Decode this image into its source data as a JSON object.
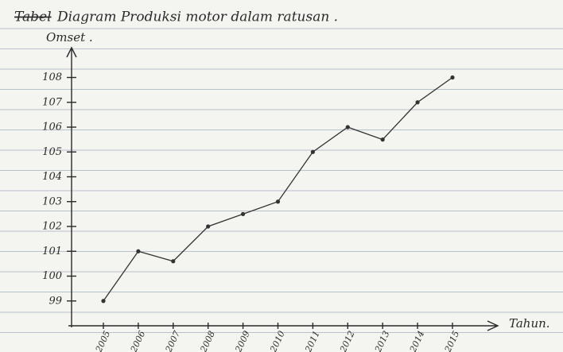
{
  "chart_data": {
    "type": "line",
    "struck_word": "Tabel",
    "title": "Diagram Produksi motor dalam ratusan .",
    "y_label": "Omset .",
    "x_label": "Tahun.",
    "categories": [
      "2005",
      "2006",
      "2007",
      "2008",
      "2009",
      "2010",
      "2011",
      "2012",
      "2013",
      "2014",
      "2015"
    ],
    "values": [
      99,
      101,
      100.6,
      102,
      102.5,
      103,
      105,
      106,
      105.5,
      107,
      108
    ],
    "color": "#333333",
    "ylim": [
      98,
      109.2
    ],
    "yticks": [
      99,
      100,
      101,
      102,
      103,
      104,
      105,
      106,
      107,
      108
    ]
  }
}
